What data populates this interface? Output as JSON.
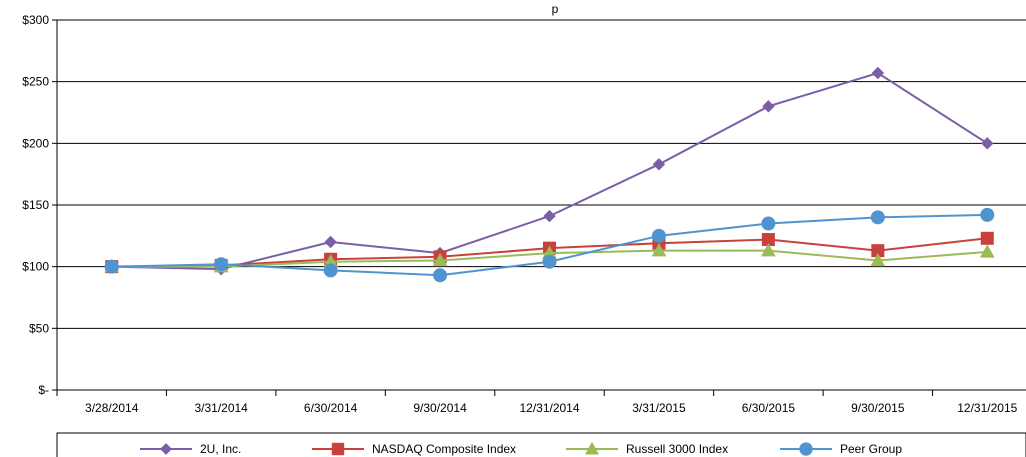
{
  "chart_data": {
    "type": "line",
    "title": "p",
    "categories": [
      "3/28/2014",
      "3/31/2014",
      "6/30/2014",
      "9/30/2014",
      "12/31/2014",
      "3/31/2015",
      "6/30/2015",
      "9/30/2015",
      "12/31/2015"
    ],
    "ylim": [
      0,
      300
    ],
    "yticks": [
      0,
      50,
      100,
      150,
      200,
      250,
      300
    ],
    "ytick_labels": [
      "$-",
      "$50",
      "$100",
      "$150",
      "$200",
      "$250",
      "$300"
    ],
    "grid": "horizontal",
    "legend_position": "bottom",
    "series": [
      {
        "name": "2U, Inc.",
        "marker": "diamond",
        "color": "#7b5ea7",
        "values": [
          100,
          98,
          120,
          111,
          141,
          183,
          230,
          257,
          200
        ]
      },
      {
        "name": "NASDAQ Composite Index",
        "marker": "square",
        "color": "#c8413c",
        "values": [
          100,
          101,
          106,
          108,
          115,
          119,
          122,
          113,
          123
        ]
      },
      {
        "name": "Russell 3000 Index",
        "marker": "triangle",
        "color": "#9bbb59",
        "values": [
          100,
          100,
          104,
          105,
          111,
          113,
          113,
          105,
          112
        ]
      },
      {
        "name": "Peer Group",
        "marker": "circle",
        "color": "#4f94d0",
        "values": [
          100,
          102,
          97,
          93,
          104,
          125,
          135,
          140,
          142
        ]
      }
    ]
  }
}
